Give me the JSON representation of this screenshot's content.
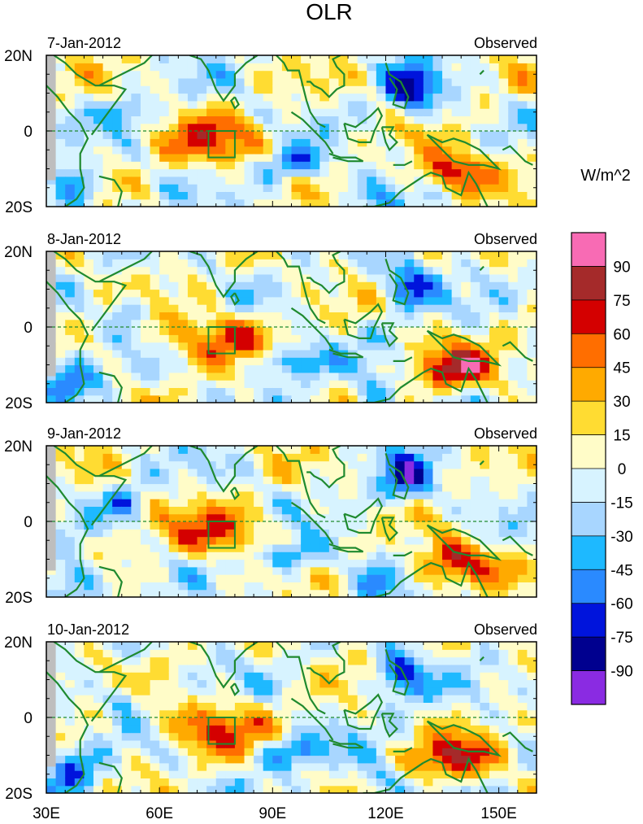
{
  "chart_data": {
    "type": "heatmap",
    "title": "OLR",
    "unit_label": "W/m^2",
    "x_ticks": [
      "30E",
      "60E",
      "90E",
      "120E",
      "150E"
    ],
    "x_tick_values": [
      30,
      60,
      90,
      120,
      150
    ],
    "xlim": [
      30,
      160
    ],
    "y_ticks": [
      "20N",
      "0",
      "20S"
    ],
    "y_tick_values": [
      20,
      0,
      -20
    ],
    "ylim": [
      -20,
      20
    ],
    "source_label": "Observed",
    "panels": [
      {
        "date": "7-Jan-2012",
        "source": "Observed"
      },
      {
        "date": "8-Jan-2012",
        "source": "Observed"
      },
      {
        "date": "9-Jan-2012",
        "source": "Observed"
      },
      {
        "date": "10-Jan-2012",
        "source": "Observed"
      }
    ],
    "colorbar": {
      "labels": [
        "90",
        "75",
        "60",
        "45",
        "30",
        "15",
        "0",
        "-15",
        "-30",
        "-45",
        "-60",
        "-75",
        "-90"
      ],
      "colors": [
        "#f86bb4",
        "#a52a2a",
        "#d40000",
        "#ff6e00",
        "#ffaa00",
        "#ffdc32",
        "#fffcc8",
        "#d7f3ff",
        "#a8d6ff",
        "#1eb9ff",
        "#2a8aff",
        "#0014dc",
        "#00008f",
        "#8a2be2"
      ]
    },
    "box_region": {
      "lon": [
        73,
        80
      ],
      "lat": [
        -7,
        0
      ]
    },
    "missing_color": "#bebebe",
    "coast_color": "#1f8a2f"
  }
}
